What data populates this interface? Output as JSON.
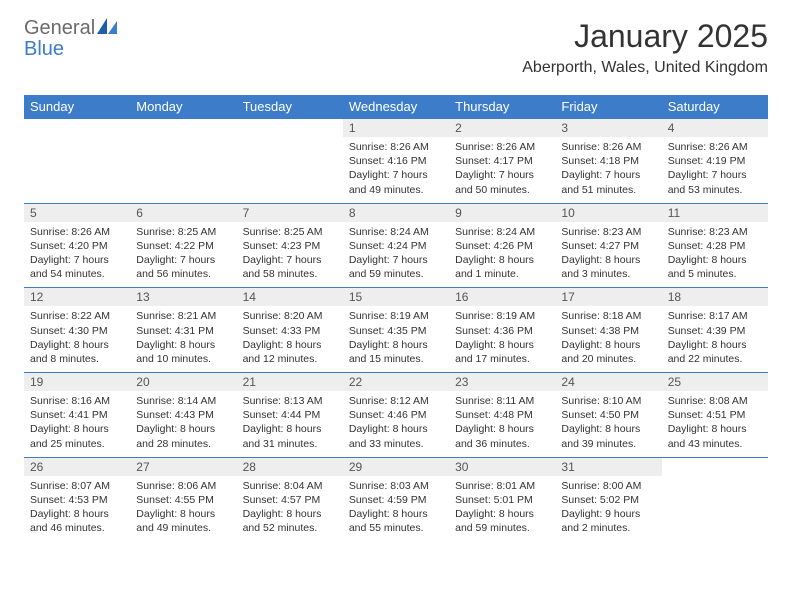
{
  "brand": {
    "part1": "General",
    "part2": "Blue"
  },
  "title": "January 2025",
  "location": "Aberporth, Wales, United Kingdom",
  "colors": {
    "header_bg": "#3d7cc9",
    "header_text": "#ffffff",
    "daynum_bg": "#eeeeee",
    "border": "#3d7cc9",
    "body_text": "#333333",
    "logo_gray": "#6b6b6b",
    "logo_blue": "#3d7cc9"
  },
  "days_of_week": [
    "Sunday",
    "Monday",
    "Tuesday",
    "Wednesday",
    "Thursday",
    "Friday",
    "Saturday"
  ],
  "weeks": [
    [
      null,
      null,
      null,
      {
        "n": "1",
        "sunrise": "8:26 AM",
        "sunset": "4:16 PM",
        "daylight": "7 hours and 49 minutes."
      },
      {
        "n": "2",
        "sunrise": "8:26 AM",
        "sunset": "4:17 PM",
        "daylight": "7 hours and 50 minutes."
      },
      {
        "n": "3",
        "sunrise": "8:26 AM",
        "sunset": "4:18 PM",
        "daylight": "7 hours and 51 minutes."
      },
      {
        "n": "4",
        "sunrise": "8:26 AM",
        "sunset": "4:19 PM",
        "daylight": "7 hours and 53 minutes."
      }
    ],
    [
      {
        "n": "5",
        "sunrise": "8:26 AM",
        "sunset": "4:20 PM",
        "daylight": "7 hours and 54 minutes."
      },
      {
        "n": "6",
        "sunrise": "8:25 AM",
        "sunset": "4:22 PM",
        "daylight": "7 hours and 56 minutes."
      },
      {
        "n": "7",
        "sunrise": "8:25 AM",
        "sunset": "4:23 PM",
        "daylight": "7 hours and 58 minutes."
      },
      {
        "n": "8",
        "sunrise": "8:24 AM",
        "sunset": "4:24 PM",
        "daylight": "7 hours and 59 minutes."
      },
      {
        "n": "9",
        "sunrise": "8:24 AM",
        "sunset": "4:26 PM",
        "daylight": "8 hours and 1 minute."
      },
      {
        "n": "10",
        "sunrise": "8:23 AM",
        "sunset": "4:27 PM",
        "daylight": "8 hours and 3 minutes."
      },
      {
        "n": "11",
        "sunrise": "8:23 AM",
        "sunset": "4:28 PM",
        "daylight": "8 hours and 5 minutes."
      }
    ],
    [
      {
        "n": "12",
        "sunrise": "8:22 AM",
        "sunset": "4:30 PM",
        "daylight": "8 hours and 8 minutes."
      },
      {
        "n": "13",
        "sunrise": "8:21 AM",
        "sunset": "4:31 PM",
        "daylight": "8 hours and 10 minutes."
      },
      {
        "n": "14",
        "sunrise": "8:20 AM",
        "sunset": "4:33 PM",
        "daylight": "8 hours and 12 minutes."
      },
      {
        "n": "15",
        "sunrise": "8:19 AM",
        "sunset": "4:35 PM",
        "daylight": "8 hours and 15 minutes."
      },
      {
        "n": "16",
        "sunrise": "8:19 AM",
        "sunset": "4:36 PM",
        "daylight": "8 hours and 17 minutes."
      },
      {
        "n": "17",
        "sunrise": "8:18 AM",
        "sunset": "4:38 PM",
        "daylight": "8 hours and 20 minutes."
      },
      {
        "n": "18",
        "sunrise": "8:17 AM",
        "sunset": "4:39 PM",
        "daylight": "8 hours and 22 minutes."
      }
    ],
    [
      {
        "n": "19",
        "sunrise": "8:16 AM",
        "sunset": "4:41 PM",
        "daylight": "8 hours and 25 minutes."
      },
      {
        "n": "20",
        "sunrise": "8:14 AM",
        "sunset": "4:43 PM",
        "daylight": "8 hours and 28 minutes."
      },
      {
        "n": "21",
        "sunrise": "8:13 AM",
        "sunset": "4:44 PM",
        "daylight": "8 hours and 31 minutes."
      },
      {
        "n": "22",
        "sunrise": "8:12 AM",
        "sunset": "4:46 PM",
        "daylight": "8 hours and 33 minutes."
      },
      {
        "n": "23",
        "sunrise": "8:11 AM",
        "sunset": "4:48 PM",
        "daylight": "8 hours and 36 minutes."
      },
      {
        "n": "24",
        "sunrise": "8:10 AM",
        "sunset": "4:50 PM",
        "daylight": "8 hours and 39 minutes."
      },
      {
        "n": "25",
        "sunrise": "8:08 AM",
        "sunset": "4:51 PM",
        "daylight": "8 hours and 43 minutes."
      }
    ],
    [
      {
        "n": "26",
        "sunrise": "8:07 AM",
        "sunset": "4:53 PM",
        "daylight": "8 hours and 46 minutes."
      },
      {
        "n": "27",
        "sunrise": "8:06 AM",
        "sunset": "4:55 PM",
        "daylight": "8 hours and 49 minutes."
      },
      {
        "n": "28",
        "sunrise": "8:04 AM",
        "sunset": "4:57 PM",
        "daylight": "8 hours and 52 minutes."
      },
      {
        "n": "29",
        "sunrise": "8:03 AM",
        "sunset": "4:59 PM",
        "daylight": "8 hours and 55 minutes."
      },
      {
        "n": "30",
        "sunrise": "8:01 AM",
        "sunset": "5:01 PM",
        "daylight": "8 hours and 59 minutes."
      },
      {
        "n": "31",
        "sunrise": "8:00 AM",
        "sunset": "5:02 PM",
        "daylight": "9 hours and 2 minutes."
      },
      null
    ]
  ],
  "labels": {
    "sunrise": "Sunrise:",
    "sunset": "Sunset:",
    "daylight": "Daylight:"
  }
}
